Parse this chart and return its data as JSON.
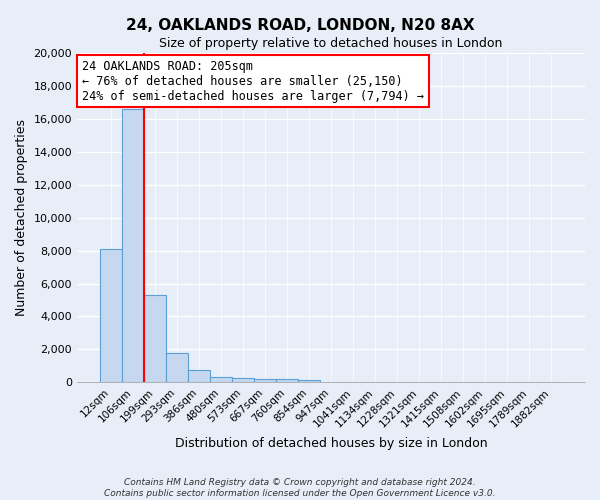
{
  "title": "24, OAKLANDS ROAD, LONDON, N20 8AX",
  "subtitle": "Size of property relative to detached houses in London",
  "xlabel": "Distribution of detached houses by size in London",
  "ylabel": "Number of detached properties",
  "bar_labels": [
    "12sqm",
    "106sqm",
    "199sqm",
    "293sqm",
    "386sqm",
    "480sqm",
    "573sqm",
    "667sqm",
    "760sqm",
    "854sqm",
    "947sqm",
    "1041sqm",
    "1134sqm",
    "1228sqm",
    "1321sqm",
    "1415sqm",
    "1508sqm",
    "1602sqm",
    "1695sqm",
    "1789sqm",
    "1882sqm"
  ],
  "bar_heights": [
    8100,
    16600,
    5300,
    1800,
    750,
    330,
    230,
    220,
    200,
    160,
    0,
    0,
    0,
    0,
    0,
    0,
    0,
    0,
    0,
    0,
    0
  ],
  "bar_color": "#c5d8f0",
  "bar_edge_color": "#5a9fd4",
  "red_line_index": 2,
  "annotation_title": "24 OAKLANDS ROAD: 205sqm",
  "annotation_line1": "← 76% of detached houses are smaller (25,150)",
  "annotation_line2": "24% of semi-detached houses are larger (7,794) →",
  "ylim": [
    0,
    20000
  ],
  "yticks": [
    0,
    2000,
    4000,
    6000,
    8000,
    10000,
    12000,
    14000,
    16000,
    18000,
    20000
  ],
  "footer1": "Contains HM Land Registry data © Crown copyright and database right 2024.",
  "footer2": "Contains public sector information licensed under the Open Government Licence v3.0.",
  "bg_color": "#e8eef8",
  "plot_bg_color": "#e8eef8"
}
